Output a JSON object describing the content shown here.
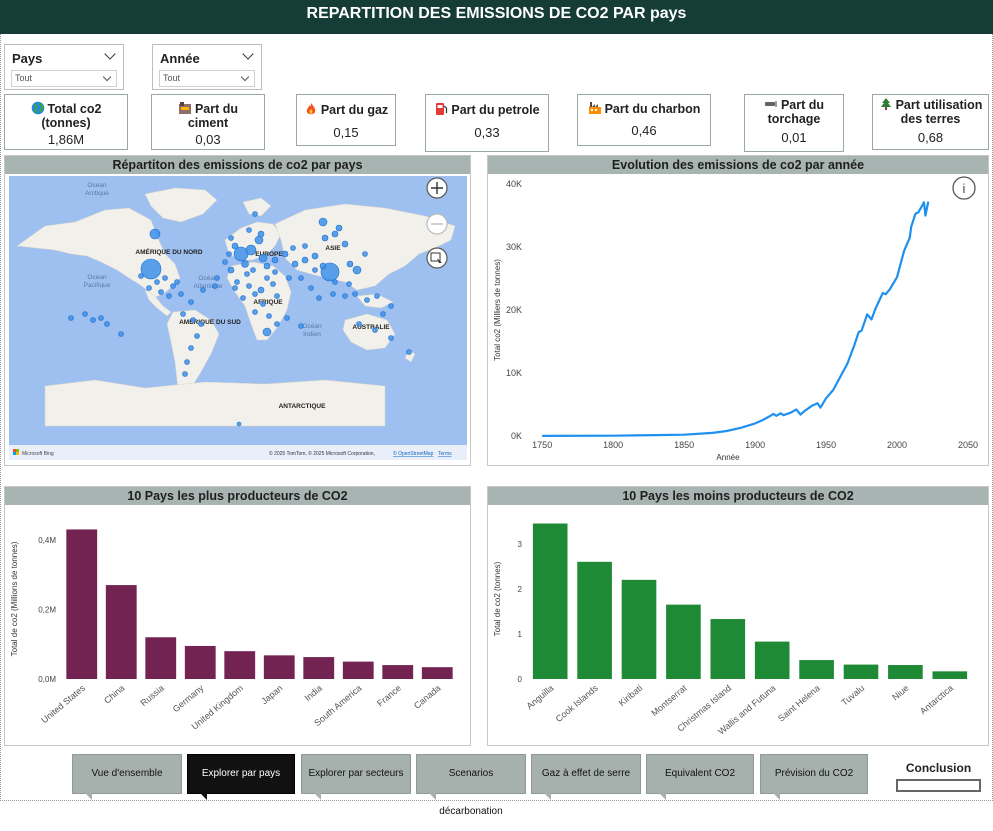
{
  "header": {
    "title": "REPARTITION DES EMISSIONS DE CO2 PAR pays"
  },
  "slicers": {
    "pays": {
      "label": "Pays",
      "value": "Tout"
    },
    "annee": {
      "label": "Année",
      "value": "Tout"
    }
  },
  "cards": {
    "total": {
      "title_line1": "Total co2",
      "title_line2": "(tonnes)",
      "value": "1,86M",
      "icon": "globe-icon"
    },
    "ciment": {
      "title_line1": "Part du",
      "title_line2": "ciment",
      "value": "0,03",
      "icon": "cement-icon"
    },
    "gaz": {
      "title": "Part du gaz",
      "value": "0,15",
      "icon": "flame-icon"
    },
    "petrole": {
      "title": "Part du petrole",
      "value": "0,33",
      "icon": "fuel-pump-icon"
    },
    "charbon": {
      "title": "Part du charbon",
      "value": "0,46",
      "icon": "factory-icon"
    },
    "torchage": {
      "title_line1": "Part du",
      "title_line2": "torchage",
      "value": "0,01",
      "icon": "flare-icon"
    },
    "terres": {
      "title_line1": "Part utilisation",
      "title_line2": "des terres",
      "value": "0,68",
      "icon": "tree-icon"
    }
  },
  "map_panel": {
    "title": "Répartiton des emissions de co2 par pays",
    "labels": {
      "ocean_arctique": [
        "Ocean",
        "Arctique"
      ],
      "ocean_pacifique": [
        "Océan",
        "Pacifique"
      ],
      "ocean_atlantique": [
        "Océan",
        "Atlantique"
      ],
      "ocean_indien": [
        "Océan",
        "Indien"
      ],
      "amerique_nord": "AMÉRIQUE DU NORD",
      "europe": "EUROPE",
      "asie": "ASIE",
      "afrique": "AFRIQUE",
      "amerique_sud": "AMÉRIQUE DU SUD",
      "australie": "AUSTRALIE",
      "antarctique": "ANTARCTIQUE"
    },
    "attribution": "© 2025 TomTom, © 2025 Microsoft Corporation,",
    "osm_link": "© OpenStreetMap",
    "terms_link": "Terms",
    "bing_logo": "Microsoft Bing"
  },
  "colors": {
    "header_bg": "#153c36",
    "panel_header": "#a7b4b1",
    "map_water": "#9ec0f0",
    "map_land": "#f2f0ea",
    "bubble": "#3d8fe8",
    "line": "#1e90f0",
    "bar_top": "#722352",
    "bar_low": "#1f8a35",
    "nav_button": "#a6b1ae",
    "nav_active": "#111111"
  },
  "nav": {
    "buttons": [
      "Vue d'ensemble",
      "Explorer par pays",
      "Explorer par secteurs",
      "Scenarios décarbonation",
      "Gaz à effet de serre",
      "Equivalent CO2",
      "Prévision du CO2"
    ],
    "active_index": 1,
    "conclusion": "Conclusion"
  },
  "chart_data": [
    {
      "type": "line",
      "title": "Evolution des emissions de co2 par année",
      "xlabel": "Année",
      "ylabel": "Total co2 (Milliers de tonnes)",
      "x_ticks": [
        "1750",
        "1800",
        "1850",
        "1900",
        "1950",
        "2000",
        "2050"
      ],
      "y_ticks": [
        "0K",
        "10K",
        "20K",
        "30K",
        "40K"
      ],
      "xlim": [
        1740,
        2050
      ],
      "ylim": [
        0,
        40000
      ],
      "x": [
        1750,
        1800,
        1830,
        1850,
        1870,
        1880,
        1890,
        1900,
        1905,
        1910,
        1913,
        1915,
        1918,
        1920,
        1925,
        1929,
        1932,
        1935,
        1940,
        1944,
        1946,
        1950,
        1955,
        1960,
        1965,
        1970,
        1973,
        1975,
        1979,
        1982,
        1985,
        1990,
        1992,
        1995,
        2000,
        2005,
        2009,
        2010,
        2013,
        2015,
        2019,
        2020,
        2022
      ],
      "y": [
        10,
        50,
        150,
        200,
        500,
        800,
        1300,
        2000,
        2500,
        3100,
        3500,
        3200,
        3600,
        3300,
        3700,
        4200,
        3400,
        4000,
        4800,
        5200,
        4500,
        6000,
        7300,
        9400,
        11500,
        14500,
        16500,
        16700,
        19300,
        18500,
        20300,
        22700,
        22500,
        23300,
        25200,
        29400,
        31500,
        33200,
        35300,
        35500,
        37100,
        35000,
        37200
      ]
    },
    {
      "type": "bar",
      "title": "10 Pays les plus producteurs de CO2",
      "ylabel": "Total de co2 (Millions de tonnes)",
      "categories": [
        "United States",
        "China",
        "Russia",
        "Germany",
        "United Kingdom",
        "Japan",
        "India",
        "South America",
        "France",
        "Canada"
      ],
      "values": [
        0.43,
        0.27,
        0.12,
        0.095,
        0.08,
        0.068,
        0.063,
        0.05,
        0.04,
        0.034
      ],
      "y_ticks": [
        "0,0M",
        "0,2M",
        "0,4M"
      ],
      "ylim": [
        0,
        0.46
      ]
    },
    {
      "type": "bar",
      "title": "10 Pays les moins producteurs de CO2",
      "ylabel": "Total de co2 (tonnes)",
      "categories": [
        "Anguilla",
        "Cook Islands",
        "Kiribati",
        "Montserrat",
        "Christmas Island",
        "Wallis and Futuna",
        "Saint Helena",
        "Tuvalu",
        "Niue",
        "Antarctica"
      ],
      "values": [
        3.45,
        2.6,
        2.2,
        1.65,
        1.33,
        0.83,
        0.42,
        0.32,
        0.31,
        0.17
      ],
      "y_ticks": [
        "0",
        "1",
        "2",
        "3"
      ],
      "ylim": [
        0,
        3.55
      ]
    }
  ]
}
